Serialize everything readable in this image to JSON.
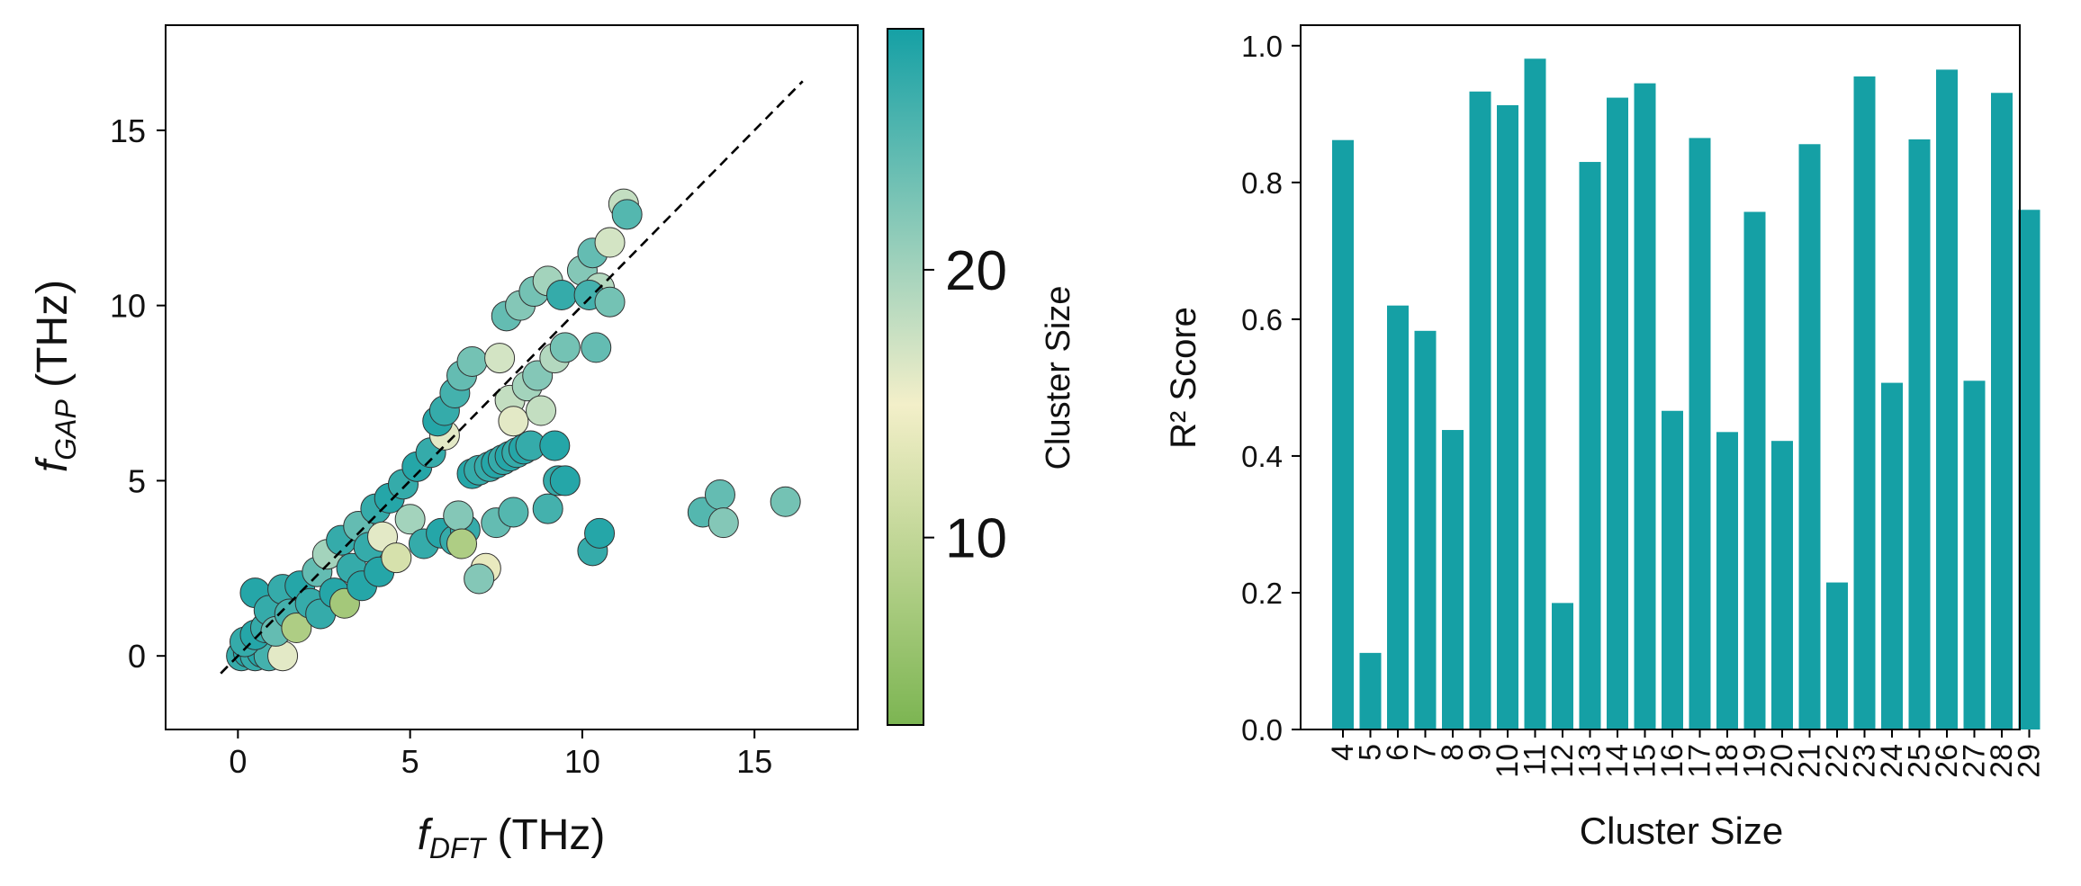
{
  "colors": {
    "bar": "#15a0a5",
    "cmap_low": "#7cb552",
    "cmap_mid": "#f3efc9",
    "cmap_high": "#15a0a5",
    "edge": "#333333",
    "axis": "#000000"
  },
  "chart_data": [
    {
      "type": "scatter",
      "name": "parity-plot",
      "xlabel": {
        "main": "f",
        "sub": "DFT",
        "unit": " (THz)"
      },
      "ylabel": {
        "main": "f",
        "sub": "GAP",
        "unit": " (THz)"
      },
      "xlim": [
        -2.1,
        18.0
      ],
      "ylim": [
        -2.1,
        18.0
      ],
      "xticks": [
        0,
        5,
        10,
        15
      ],
      "yticks": [
        0,
        5,
        10,
        15
      ],
      "reference_line": {
        "style": "dashed",
        "from": [
          -0.5,
          -0.5
        ],
        "to": [
          16.4,
          16.4
        ]
      },
      "colorbar": {
        "label": "Cluster Size",
        "range": [
          3,
          29
        ],
        "ticks": [
          10,
          20
        ]
      },
      "points": [
        {
          "x": 0.1,
          "y": 0.0,
          "c": 27
        },
        {
          "x": 0.3,
          "y": 0.1,
          "c": 28
        },
        {
          "x": 0.5,
          "y": 0.0,
          "c": 27
        },
        {
          "x": 0.7,
          "y": 0.1,
          "c": 28
        },
        {
          "x": 0.9,
          "y": 0.0,
          "c": 26
        },
        {
          "x": 1.3,
          "y": 0.0,
          "c": 16
        },
        {
          "x": 0.2,
          "y": 0.4,
          "c": 27
        },
        {
          "x": 0.5,
          "y": 0.6,
          "c": 28
        },
        {
          "x": 0.8,
          "y": 0.8,
          "c": 27
        },
        {
          "x": 0.5,
          "y": 1.8,
          "c": 28
        },
        {
          "x": 0.9,
          "y": 1.3,
          "c": 27
        },
        {
          "x": 1.1,
          "y": 0.7,
          "c": 24
        },
        {
          "x": 1.3,
          "y": 1.9,
          "c": 27
        },
        {
          "x": 1.5,
          "y": 1.2,
          "c": 26
        },
        {
          "x": 1.7,
          "y": 0.8,
          "c": 8
        },
        {
          "x": 1.8,
          "y": 2.0,
          "c": 28
        },
        {
          "x": 2.1,
          "y": 1.5,
          "c": 27
        },
        {
          "x": 2.3,
          "y": 2.4,
          "c": 24
        },
        {
          "x": 2.4,
          "y": 1.2,
          "c": 27
        },
        {
          "x": 2.6,
          "y": 2.9,
          "c": 20
        },
        {
          "x": 2.8,
          "y": 1.8,
          "c": 28
        },
        {
          "x": 3.0,
          "y": 3.3,
          "c": 27
        },
        {
          "x": 3.1,
          "y": 1.5,
          "c": 7
        },
        {
          "x": 3.3,
          "y": 2.5,
          "c": 27
        },
        {
          "x": 3.5,
          "y": 3.7,
          "c": 24
        },
        {
          "x": 3.6,
          "y": 2.0,
          "c": 28
        },
        {
          "x": 3.8,
          "y": 3.1,
          "c": 27
        },
        {
          "x": 4.0,
          "y": 4.2,
          "c": 27
        },
        {
          "x": 4.1,
          "y": 2.4,
          "c": 28
        },
        {
          "x": 4.2,
          "y": 3.4,
          "c": 16
        },
        {
          "x": 4.4,
          "y": 4.5,
          "c": 28
        },
        {
          "x": 4.6,
          "y": 2.8,
          "c": 12
        },
        {
          "x": 4.8,
          "y": 4.9,
          "c": 27
        },
        {
          "x": 5.0,
          "y": 3.9,
          "c": 20
        },
        {
          "x": 5.2,
          "y": 5.4,
          "c": 28
        },
        {
          "x": 5.4,
          "y": 3.2,
          "c": 27
        },
        {
          "x": 5.6,
          "y": 5.8,
          "c": 27
        },
        {
          "x": 5.9,
          "y": 3.5,
          "c": 28
        },
        {
          "x": 6.0,
          "y": 6.3,
          "c": 16
        },
        {
          "x": 6.3,
          "y": 3.3,
          "c": 27
        },
        {
          "x": 5.8,
          "y": 6.7,
          "c": 28
        },
        {
          "x": 6.0,
          "y": 7.0,
          "c": 27
        },
        {
          "x": 6.3,
          "y": 7.5,
          "c": 26
        },
        {
          "x": 6.5,
          "y": 8.0,
          "c": 24
        },
        {
          "x": 6.8,
          "y": 8.4,
          "c": 23
        },
        {
          "x": 6.6,
          "y": 3.6,
          "c": 27
        },
        {
          "x": 6.4,
          "y": 4.0,
          "c": 22
        },
        {
          "x": 6.8,
          "y": 5.2,
          "c": 28
        },
        {
          "x": 7.0,
          "y": 5.3,
          "c": 27
        },
        {
          "x": 7.2,
          "y": 2.5,
          "c": 14
        },
        {
          "x": 7.0,
          "y": 2.2,
          "c": 22
        },
        {
          "x": 6.5,
          "y": 3.2,
          "c": 8
        },
        {
          "x": 7.3,
          "y": 5.4,
          "c": 27
        },
        {
          "x": 7.5,
          "y": 5.5,
          "c": 28
        },
        {
          "x": 7.7,
          "y": 5.6,
          "c": 27
        },
        {
          "x": 7.9,
          "y": 5.7,
          "c": 28
        },
        {
          "x": 8.1,
          "y": 5.8,
          "c": 27
        },
        {
          "x": 8.3,
          "y": 5.9,
          "c": 28
        },
        {
          "x": 8.5,
          "y": 6.0,
          "c": 27
        },
        {
          "x": 9.2,
          "y": 6.0,
          "c": 28
        },
        {
          "x": 9.3,
          "y": 5.0,
          "c": 27
        },
        {
          "x": 9.5,
          "y": 5.0,
          "c": 28
        },
        {
          "x": 9.0,
          "y": 4.2,
          "c": 26
        },
        {
          "x": 7.5,
          "y": 3.8,
          "c": 24
        },
        {
          "x": 8.0,
          "y": 4.1,
          "c": 25
        },
        {
          "x": 7.8,
          "y": 9.7,
          "c": 24
        },
        {
          "x": 8.2,
          "y": 10.0,
          "c": 22
        },
        {
          "x": 8.6,
          "y": 10.4,
          "c": 23
        },
        {
          "x": 9.0,
          "y": 10.7,
          "c": 20
        },
        {
          "x": 9.4,
          "y": 10.3,
          "c": 27
        },
        {
          "x": 10.0,
          "y": 11.0,
          "c": 22
        },
        {
          "x": 10.3,
          "y": 11.5,
          "c": 24
        },
        {
          "x": 10.8,
          "y": 11.8,
          "c": 17
        },
        {
          "x": 10.5,
          "y": 10.5,
          "c": 19
        },
        {
          "x": 10.2,
          "y": 10.3,
          "c": 26
        },
        {
          "x": 10.4,
          "y": 8.8,
          "c": 24
        },
        {
          "x": 10.8,
          "y": 10.1,
          "c": 23
        },
        {
          "x": 11.2,
          "y": 12.9,
          "c": 18
        },
        {
          "x": 11.3,
          "y": 12.6,
          "c": 25
        },
        {
          "x": 7.6,
          "y": 8.5,
          "c": 17
        },
        {
          "x": 7.9,
          "y": 7.3,
          "c": 18
        },
        {
          "x": 8.4,
          "y": 7.7,
          "c": 20
        },
        {
          "x": 8.7,
          "y": 8.0,
          "c": 22
        },
        {
          "x": 9.2,
          "y": 8.5,
          "c": 19
        },
        {
          "x": 9.5,
          "y": 8.8,
          "c": 23
        },
        {
          "x": 8.0,
          "y": 6.7,
          "c": 16
        },
        {
          "x": 8.8,
          "y": 7.0,
          "c": 18
        },
        {
          "x": 10.3,
          "y": 3.0,
          "c": 27
        },
        {
          "x": 10.5,
          "y": 3.5,
          "c": 28
        },
        {
          "x": 13.5,
          "y": 4.1,
          "c": 25
        },
        {
          "x": 14.0,
          "y": 4.6,
          "c": 24
        },
        {
          "x": 14.1,
          "y": 3.8,
          "c": 22
        },
        {
          "x": 15.9,
          "y": 4.4,
          "c": 23
        }
      ]
    },
    {
      "type": "bar",
      "name": "r2-bars",
      "xlabel": "Cluster Size",
      "ylabel": "R² Score",
      "ylim": [
        0.0,
        1.03
      ],
      "yticks": [
        "0.0",
        "0.2",
        "0.4",
        "0.6",
        "0.8",
        "1.0"
      ],
      "categories": [
        "4",
        "5",
        "6",
        "7",
        "8",
        "9",
        "10",
        "11",
        "12",
        "13",
        "14",
        "15",
        "16",
        "17",
        "18",
        "19",
        "20",
        "21",
        "22",
        "23",
        "24",
        "25",
        "26",
        "27",
        "28",
        "29"
      ],
      "values": [
        0.862,
        0.112,
        0.62,
        0.583,
        0.438,
        0.933,
        0.913,
        0.981,
        0.185,
        0.83,
        0.924,
        0.945,
        0.466,
        0.865,
        0.435,
        0.757,
        0.422,
        0.856,
        0.215,
        0.955,
        0.507,
        0.863,
        0.965,
        0.51,
        0.931,
        0.76
      ]
    }
  ]
}
